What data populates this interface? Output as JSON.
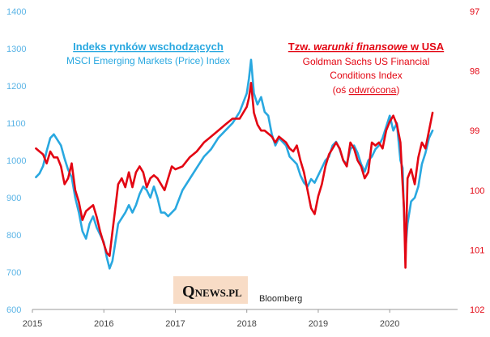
{
  "chart_data": {
    "type": "line",
    "left_title": "Indeks rynków wschodzących",
    "left_subtitle": "MSCI Emerging Markets (Price) Index",
    "right_title_prefix": "Tzw. ",
    "right_title_italic": "warunki finansowe",
    "right_title_suffix": " w USA",
    "right_subtitle_1": "Goldman Sachs US Financial",
    "right_subtitle_2": "Conditions Index",
    "right_subtitle_3_prefix": "(oś ",
    "right_subtitle_3_underlined": "odwrócona",
    "right_subtitle_3_suffix": ")",
    "source": "Bloomberg",
    "logo_initial": "Q",
    "logo_rest": "NEWS.PL",
    "x_range": [
      2015.0,
      2020.95
    ],
    "x_ticks": [
      2015,
      2016,
      2017,
      2018,
      2019,
      2020
    ],
    "x_tick_labels": [
      "2015",
      "2016",
      "2017",
      "2018",
      "2019",
      "2020"
    ],
    "y_left": {
      "range": [
        600,
        1400
      ],
      "ticks": [
        600,
        700,
        800,
        900,
        1000,
        1100,
        1200,
        1300,
        1400
      ]
    },
    "y_right": {
      "range": [
        97,
        102
      ],
      "inverted": true,
      "ticks": [
        97,
        98,
        99,
        100,
        101,
        102
      ]
    },
    "grid": false,
    "legend": "none",
    "series": [
      {
        "axis": "left",
        "color": "#29a8e0",
        "x": [
          2015.05,
          2015.1,
          2015.15,
          2015.2,
          2015.25,
          2015.3,
          2015.35,
          2015.4,
          2015.45,
          2015.5,
          2015.55,
          2015.6,
          2015.65,
          2015.7,
          2015.75,
          2015.8,
          2015.85,
          2015.9,
          2015.95,
          2016.0,
          2016.04,
          2016.08,
          2016.12,
          2016.16,
          2016.2,
          2016.25,
          2016.3,
          2016.35,
          2016.4,
          2016.45,
          2016.5,
          2016.55,
          2016.6,
          2016.65,
          2016.7,
          2016.75,
          2016.8,
          2016.85,
          2016.9,
          2016.95,
          2017.0,
          2017.1,
          2017.2,
          2017.3,
          2017.4,
          2017.5,
          2017.6,
          2017.7,
          2017.8,
          2017.9,
          2018.0,
          2018.03,
          2018.06,
          2018.1,
          2018.15,
          2018.2,
          2018.25,
          2018.3,
          2018.35,
          2018.4,
          2018.45,
          2018.5,
          2018.55,
          2018.6,
          2018.65,
          2018.7,
          2018.75,
          2018.8,
          2018.85,
          2018.9,
          2018.95,
          2019.0,
          2019.05,
          2019.1,
          2019.15,
          2019.2,
          2019.25,
          2019.3,
          2019.35,
          2019.4,
          2019.45,
          2019.5,
          2019.55,
          2019.6,
          2019.65,
          2019.7,
          2019.75,
          2019.8,
          2019.85,
          2019.9,
          2019.95,
          2020.0,
          2020.05,
          2020.1,
          2020.15,
          2020.18,
          2020.2,
          2020.22,
          2020.25,
          2020.3,
          2020.35,
          2020.4,
          2020.45,
          2020.5,
          2020.55,
          2020.6
        ],
        "y": [
          955,
          965,
          985,
          1025,
          1060,
          1070,
          1055,
          1040,
          1005,
          975,
          955,
          900,
          860,
          810,
          790,
          830,
          850,
          820,
          800,
          780,
          740,
          710,
          730,
          780,
          830,
          845,
          860,
          880,
          860,
          880,
          910,
          930,
          920,
          900,
          930,
          900,
          860,
          860,
          850,
          860,
          870,
          920,
          950,
          980,
          1010,
          1030,
          1060,
          1080,
          1100,
          1130,
          1180,
          1220,
          1270,
          1180,
          1150,
          1170,
          1130,
          1120,
          1070,
          1040,
          1060,
          1050,
          1040,
          1010,
          1000,
          990,
          960,
          940,
          930,
          950,
          940,
          960,
          980,
          1000,
          1010,
          1040,
          1050,
          1030,
          1000,
          990,
          1030,
          1040,
          1020,
          990,
          970,
          1000,
          1010,
          1030,
          1040,
          1060,
          1090,
          1120,
          1080,
          1100,
          1000,
          980,
          860,
          760,
          830,
          890,
          900,
          930,
          990,
          1020,
          1060,
          1080
        ]
      },
      {
        "axis": "right",
        "color": "#e30613",
        "x": [
          2015.05,
          2015.1,
          2015.15,
          2015.2,
          2015.25,
          2015.3,
          2015.35,
          2015.4,
          2015.45,
          2015.5,
          2015.55,
          2015.6,
          2015.65,
          2015.7,
          2015.75,
          2015.8,
          2015.85,
          2015.9,
          2015.95,
          2016.0,
          2016.04,
          2016.08,
          2016.12,
          2016.16,
          2016.2,
          2016.25,
          2016.3,
          2016.35,
          2016.4,
          2016.45,
          2016.5,
          2016.55,
          2016.6,
          2016.65,
          2016.7,
          2016.75,
          2016.8,
          2016.85,
          2016.9,
          2016.95,
          2017.0,
          2017.1,
          2017.2,
          2017.3,
          2017.4,
          2017.5,
          2017.6,
          2017.7,
          2017.8,
          2017.9,
          2018.0,
          2018.03,
          2018.06,
          2018.1,
          2018.15,
          2018.2,
          2018.25,
          2018.3,
          2018.35,
          2018.4,
          2018.45,
          2018.5,
          2018.55,
          2018.6,
          2018.65,
          2018.7,
          2018.75,
          2018.8,
          2018.85,
          2018.9,
          2018.95,
          2019.0,
          2019.05,
          2019.1,
          2019.15,
          2019.2,
          2019.25,
          2019.3,
          2019.35,
          2019.4,
          2019.45,
          2019.5,
          2019.55,
          2019.6,
          2019.65,
          2019.7,
          2019.75,
          2019.8,
          2019.85,
          2019.9,
          2019.95,
          2020.0,
          2020.05,
          2020.1,
          2020.15,
          2020.18,
          2020.2,
          2020.22,
          2020.25,
          2020.3,
          2020.35,
          2020.4,
          2020.45,
          2020.5,
          2020.55,
          2020.6
        ],
        "y": [
          99.3,
          99.35,
          99.4,
          99.55,
          99.35,
          99.45,
          99.45,
          99.6,
          99.9,
          99.8,
          99.55,
          100.0,
          100.2,
          100.5,
          100.35,
          100.3,
          100.25,
          100.45,
          100.7,
          100.9,
          101.05,
          101.1,
          100.7,
          100.3,
          99.9,
          99.8,
          99.95,
          99.7,
          99.95,
          99.7,
          99.6,
          99.7,
          99.95,
          99.8,
          99.75,
          99.8,
          99.9,
          100.0,
          99.8,
          99.6,
          99.65,
          99.6,
          99.45,
          99.35,
          99.2,
          99.1,
          99.0,
          98.9,
          98.8,
          98.8,
          98.6,
          98.45,
          98.2,
          98.7,
          98.9,
          99.0,
          99.0,
          99.05,
          99.1,
          99.2,
          99.1,
          99.15,
          99.2,
          99.3,
          99.35,
          99.25,
          99.5,
          99.7,
          100.0,
          100.3,
          100.4,
          100.1,
          99.9,
          99.6,
          99.4,
          99.3,
          99.2,
          99.3,
          99.5,
          99.6,
          99.2,
          99.3,
          99.5,
          99.6,
          99.8,
          99.7,
          99.2,
          99.25,
          99.2,
          99.3,
          99.0,
          98.85,
          98.75,
          98.9,
          99.2,
          99.9,
          100.3,
          101.3,
          99.8,
          99.65,
          99.9,
          99.45,
          99.2,
          99.3,
          99.0,
          98.7
        ]
      }
    ]
  }
}
